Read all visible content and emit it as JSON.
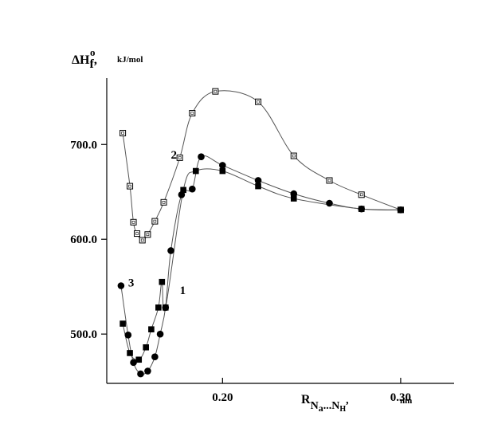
{
  "chart_data": {
    "type": "scatter",
    "ylabel": {
      "main": "ΔH",
      "sup": "o",
      "sub": "f",
      "unit": "kJ/mol"
    },
    "xlabel": {
      "main": "R",
      "sub1": "N",
      "sub1b": "a",
      "mid": "...",
      "sub2": "N",
      "sub2b": "H",
      "unit": "nm"
    },
    "xlim": [
      0.135,
      0.33
    ],
    "ylim": [
      448,
      770
    ],
    "x_ticks": [
      0.2,
      0.3
    ],
    "x_tick_labels": [
      "0.20",
      "0.30"
    ],
    "y_ticks": [
      500,
      600,
      700
    ],
    "y_tick_labels": [
      "500.0",
      "600.0",
      "700.0"
    ],
    "grid": false,
    "series": [
      {
        "name": "1",
        "marker": "square-filled",
        "x": [
          0.144,
          0.148,
          0.153,
          0.157,
          0.16,
          0.164,
          0.166,
          0.168,
          0.178,
          0.185,
          0.2,
          0.22,
          0.24,
          0.278,
          0.3
        ],
        "y": [
          511,
          480,
          473,
          486,
          505,
          528,
          555,
          528,
          652,
          672,
          672,
          656,
          643,
          632,
          631
        ]
      },
      {
        "name": "2",
        "marker": "square-open",
        "x": [
          0.144,
          0.148,
          0.15,
          0.152,
          0.155,
          0.158,
          0.162,
          0.167,
          0.176,
          0.183,
          0.196,
          0.22,
          0.24,
          0.26,
          0.278,
          0.3
        ],
        "y": [
          712,
          656,
          618,
          606,
          599,
          605,
          619,
          639,
          686,
          733,
          756,
          745,
          688,
          662,
          647,
          631
        ]
      },
      {
        "name": "3",
        "marker": "circle-filled",
        "x": [
          0.143,
          0.147,
          0.15,
          0.154,
          0.158,
          0.162,
          0.165,
          0.168,
          0.171,
          0.177,
          0.183,
          0.188,
          0.2,
          0.22,
          0.24,
          0.26,
          0.278,
          0.3
        ],
        "y": [
          551,
          499,
          470,
          458,
          461,
          476,
          500,
          528,
          588,
          647,
          653,
          687,
          678,
          662,
          648,
          638,
          632,
          631
        ]
      }
    ],
    "annotations": [
      {
        "text": "2",
        "x": 0.171,
        "y": 685
      },
      {
        "text": "1",
        "x": 0.176,
        "y": 542
      },
      {
        "text": "3",
        "x": 0.147,
        "y": 550
      }
    ]
  }
}
